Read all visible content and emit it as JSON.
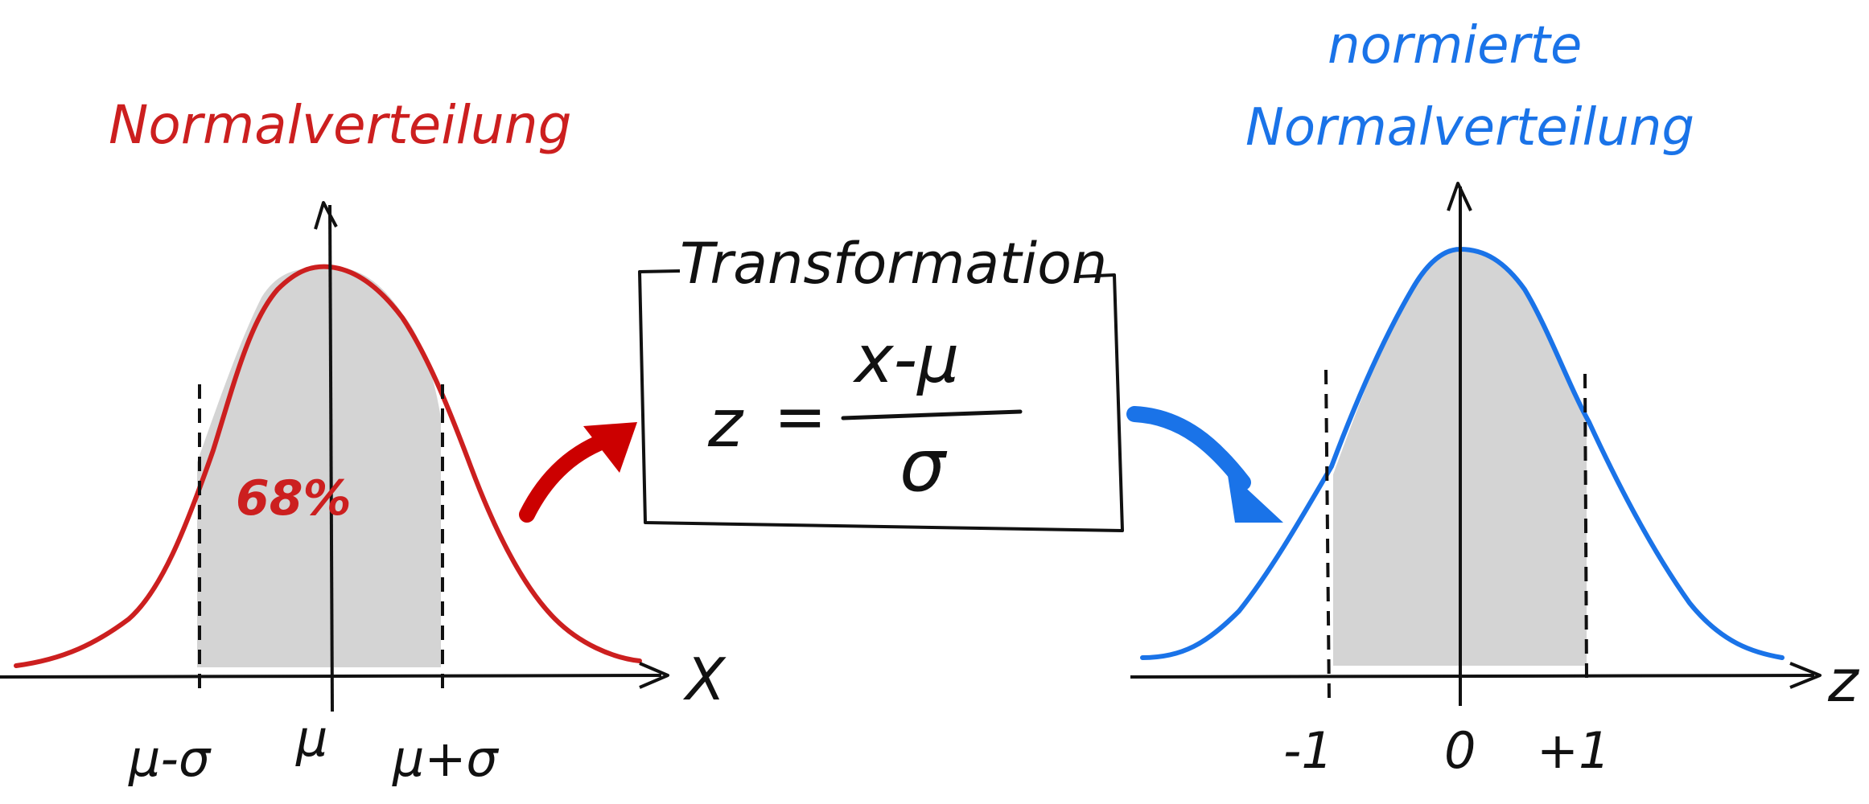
{
  "left_panel": {
    "title": "Normalverteilung",
    "axis_label": "X",
    "ticks": [
      "μ-σ",
      "μ",
      "μ+σ"
    ],
    "area_label": "68%",
    "curve_color": "#cc1f1f"
  },
  "center_box": {
    "title": "Transformation",
    "formula_lhs": "z",
    "formula_eq": "=",
    "numerator": "x-μ",
    "denominator": "σ"
  },
  "right_panel": {
    "title_line1": "normierte",
    "title_line2": "Normalverteilung",
    "axis_label": "z",
    "ticks": [
      "-1",
      "0",
      "+1"
    ],
    "curve_color": "#1a73e8"
  },
  "arrows": {
    "left_color": "#cc0000",
    "right_color": "#1a73e8"
  },
  "fill_color": "#d4d4d4"
}
